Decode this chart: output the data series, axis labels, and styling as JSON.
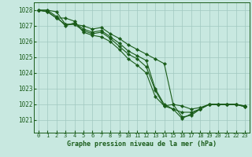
{
  "title": "Graphe pression niveau de la mer (hPa)",
  "background_color": "#c8e8e0",
  "grid_color": "#a0c8c0",
  "line_color": "#1a5c1a",
  "xlim": [
    -0.5,
    23.5
  ],
  "ylim": [
    1020.2,
    1028.5
  ],
  "yticks": [
    1021,
    1022,
    1023,
    1024,
    1025,
    1026,
    1027,
    1028
  ],
  "xticks": [
    0,
    1,
    2,
    3,
    4,
    5,
    6,
    7,
    8,
    9,
    10,
    11,
    12,
    13,
    14,
    15,
    16,
    17,
    18,
    19,
    20,
    21,
    22,
    23
  ],
  "series": [
    [
      1028.0,
      1028.0,
      1027.9,
      1027.1,
      1027.1,
      1027.0,
      1026.8,
      1026.9,
      1026.5,
      1026.2,
      1025.8,
      1025.5,
      1025.2,
      1024.9,
      1024.6,
      1022.0,
      1021.9,
      1021.7,
      1021.8,
      1022.0,
      1022.0,
      1022.0,
      1022.0,
      1021.9
    ],
    [
      1028.0,
      1028.0,
      1027.6,
      1027.0,
      1027.2,
      1026.8,
      1026.6,
      1026.7,
      1026.3,
      1025.9,
      1025.4,
      1025.1,
      1024.8,
      1023.0,
      1022.0,
      1021.7,
      1021.1,
      1021.4,
      1021.7,
      1022.0,
      1022.0,
      1022.0,
      1022.0,
      1021.9
    ],
    [
      1028.0,
      1027.9,
      1027.5,
      1027.1,
      1027.1,
      1026.7,
      1026.5,
      1026.6,
      1026.2,
      1025.7,
      1025.2,
      1024.9,
      1024.4,
      1022.9,
      1021.9,
      1021.7,
      1021.5,
      1021.5,
      1021.7,
      1022.0,
      1022.0,
      1022.0,
      1022.0,
      1021.85
    ],
    [
      1028.0,
      1027.9,
      1027.5,
      1027.5,
      1027.3,
      1026.6,
      1026.4,
      1026.3,
      1026.0,
      1025.5,
      1024.9,
      1024.5,
      1024.0,
      1022.5,
      1021.9,
      1022.0,
      1021.2,
      1021.3,
      1021.7,
      1022.0,
      1022.0,
      1022.0,
      1022.0,
      1021.85
    ]
  ]
}
